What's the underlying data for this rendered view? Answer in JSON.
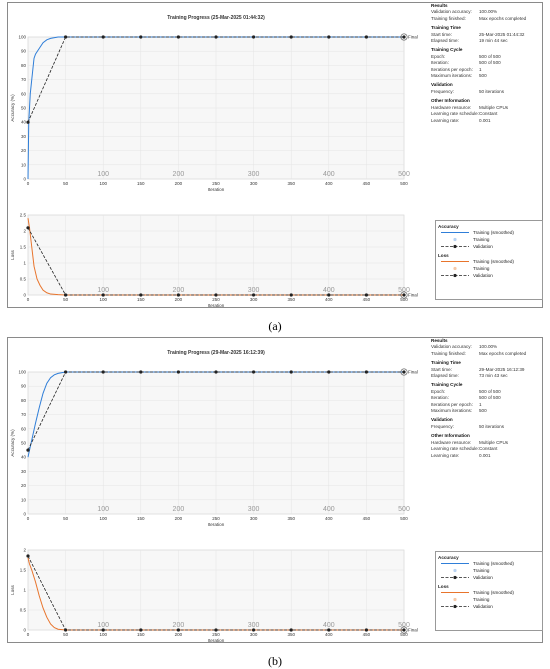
{
  "panels": [
    {
      "id": "a",
      "caption": "(a)",
      "chart_data": [
        {
          "type": "line",
          "title": "Training Progress (25-Mar-2025 01:44:32)",
          "xlabel": "Iteration",
          "ylabel": "Accuracy (%)",
          "xlim": [
            0,
            500
          ],
          "ylim": [
            0,
            100
          ],
          "xticks": [
            0,
            50,
            100,
            150,
            200,
            250,
            300,
            350,
            400,
            450,
            500
          ],
          "yticks": [
            0,
            10,
            20,
            30,
            40,
            50,
            60,
            70,
            80,
            90,
            100
          ],
          "epoch_labels": [
            "100",
            "200",
            "300",
            "400",
            "500"
          ],
          "final_label": "Final",
          "series": [
            {
              "name": "Training (smoothed)",
              "color": "#2f7ed8",
              "x": [
                0,
                1,
                3,
                5,
                8,
                10,
                15,
                20,
                25,
                30,
                40,
                50,
                500
              ],
              "y": [
                0,
                40,
                60,
                70,
                85,
                88,
                92,
                96,
                98,
                99,
                100,
                100,
                100
              ]
            },
            {
              "name": "Validation",
              "color": "#000000",
              "x": [
                0,
                50,
                100,
                150,
                200,
                250,
                300,
                350,
                400,
                450,
                500
              ],
              "y": [
                40,
                100,
                100,
                100,
                100,
                100,
                100,
                100,
                100,
                100,
                100
              ]
            }
          ]
        },
        {
          "type": "line",
          "xlabel": "Iteration",
          "ylabel": "Loss",
          "xlim": [
            0,
            500
          ],
          "ylim": [
            0,
            2.5
          ],
          "xticks": [
            0,
            50,
            100,
            150,
            200,
            250,
            300,
            350,
            400,
            450,
            500
          ],
          "yticks": [
            0,
            0.5,
            1,
            1.5,
            2,
            2.5
          ],
          "epoch_labels": [
            "100",
            "200",
            "300",
            "400",
            "500"
          ],
          "final_label": "Final",
          "series": [
            {
              "name": "Training (smoothed)",
              "color": "#e8742c",
              "x": [
                0,
                2,
                5,
                8,
                12,
                16,
                20,
                25,
                30,
                40,
                50,
                500
              ],
              "y": [
                2.4,
                2.1,
                1.5,
                0.9,
                0.5,
                0.3,
                0.15,
                0.07,
                0.03,
                0.01,
                0,
                0
              ]
            },
            {
              "name": "Validation",
              "color": "#000000",
              "x": [
                0,
                50,
                100,
                150,
                200,
                250,
                300,
                350,
                400,
                450,
                500
              ],
              "y": [
                2.1,
                0,
                0,
                0,
                0,
                0,
                0,
                0,
                0,
                0,
                0
              ]
            }
          ]
        }
      ],
      "info": [
        {
          "section": "Results",
          "rows": [
            [
              "Validation accuracy:",
              "100.00%"
            ],
            [
              "Training finished:",
              "Max epochs completed"
            ]
          ]
        },
        {
          "section": "Training Time",
          "rows": [
            [
              "Start time:",
              "25-Mar-2025 01:44:32"
            ],
            [
              "Elapsed time:",
              "19 min 44 sec"
            ]
          ]
        },
        {
          "section": "Training Cycle",
          "rows": [
            [
              "Epoch:",
              "500 of 500"
            ],
            [
              "Iteration:",
              "500 of 500"
            ],
            [
              "Iterations per epoch:",
              "1"
            ],
            [
              "Maximum iterations:",
              "500"
            ]
          ]
        },
        {
          "section": "Validation",
          "rows": [
            [
              "Frequency:",
              "50 iterations"
            ]
          ]
        },
        {
          "section": "Other Information",
          "rows": [
            [
              "Hardware resource:",
              "Multiple CPUs"
            ],
            [
              "Learning rate schedule:",
              "Constant"
            ],
            [
              "Learning rate:",
              "0.001"
            ]
          ]
        }
      ]
    },
    {
      "id": "b",
      "caption": "(b)",
      "chart_data": [
        {
          "type": "line",
          "title": "Training Progress (29-Mar-2025 16:12:39)",
          "xlabel": "Iteration",
          "ylabel": "Accuracy (%)",
          "xlim": [
            0,
            500
          ],
          "ylim": [
            0,
            100
          ],
          "xticks": [
            0,
            50,
            100,
            150,
            200,
            250,
            300,
            350,
            400,
            450,
            500
          ],
          "yticks": [
            0,
            10,
            20,
            30,
            40,
            50,
            60,
            70,
            80,
            90,
            100
          ],
          "epoch_labels": [
            "100",
            "200",
            "300",
            "400",
            "500"
          ],
          "final_label": "Final",
          "series": [
            {
              "name": "Training (smoothed)",
              "color": "#2f7ed8",
              "x": [
                0,
                2,
                5,
                10,
                15,
                20,
                25,
                30,
                35,
                40,
                50,
                500
              ],
              "y": [
                40,
                45,
                52,
                64,
                75,
                85,
                92,
                96,
                98,
                99,
                100,
                100
              ]
            },
            {
              "name": "Validation",
              "color": "#000000",
              "x": [
                0,
                50,
                100,
                150,
                200,
                250,
                300,
                350,
                400,
                450,
                500
              ],
              "y": [
                45,
                100,
                100,
                100,
                100,
                100,
                100,
                100,
                100,
                100,
                100
              ]
            }
          ]
        },
        {
          "type": "line",
          "xlabel": "Iteration",
          "ylabel": "Loss",
          "xlim": [
            0,
            500
          ],
          "ylim": [
            0,
            2
          ],
          "xticks": [
            0,
            50,
            100,
            150,
            200,
            250,
            300,
            350,
            400,
            450,
            500
          ],
          "yticks": [
            0,
            0.5,
            1,
            1.5,
            2
          ],
          "epoch_labels": [
            "100",
            "200",
            "300",
            "400",
            "500"
          ],
          "final_label": "Final",
          "series": [
            {
              "name": "Training (smoothed)",
              "color": "#e8742c",
              "x": [
                0,
                2,
                5,
                10,
                15,
                20,
                25,
                30,
                35,
                40,
                50,
                500
              ],
              "y": [
                1.8,
                1.65,
                1.5,
                1.2,
                0.85,
                0.55,
                0.32,
                0.15,
                0.06,
                0.02,
                0,
                0
              ]
            },
            {
              "name": "Validation",
              "color": "#000000",
              "x": [
                0,
                50,
                100,
                150,
                200,
                250,
                300,
                350,
                400,
                450,
                500
              ],
              "y": [
                1.85,
                0,
                0,
                0,
                0,
                0,
                0,
                0,
                0,
                0,
                0
              ]
            }
          ]
        }
      ],
      "info": [
        {
          "section": "Results",
          "rows": [
            [
              "Validation accuracy:",
              "100.00%"
            ],
            [
              "Training finished:",
              "Max epochs completed"
            ]
          ]
        },
        {
          "section": "Training Time",
          "rows": [
            [
              "Start time:",
              "29-Mar-2025 16:12:39"
            ],
            [
              "Elapsed time:",
              "73 min 43 sec"
            ]
          ]
        },
        {
          "section": "Training Cycle",
          "rows": [
            [
              "Epoch:",
              "500 of 500"
            ],
            [
              "Iteration:",
              "500 of 500"
            ],
            [
              "Iterations per epoch:",
              "1"
            ],
            [
              "Maximum iterations:",
              "500"
            ]
          ]
        },
        {
          "section": "Validation",
          "rows": [
            [
              "Frequency:",
              "50 iterations"
            ]
          ]
        },
        {
          "section": "Other Information",
          "rows": [
            [
              "Hardware resource:",
              "Multiple CPUs"
            ],
            [
              "Learning rate schedule:",
              "Constant"
            ],
            [
              "Learning rate:",
              "0.001"
            ]
          ]
        }
      ]
    }
  ],
  "legend": {
    "accuracy_heading": "Accuracy",
    "loss_heading": "Loss",
    "training_smoothed": "Training (smoothed)",
    "training": "Training",
    "validation": "Validation"
  }
}
